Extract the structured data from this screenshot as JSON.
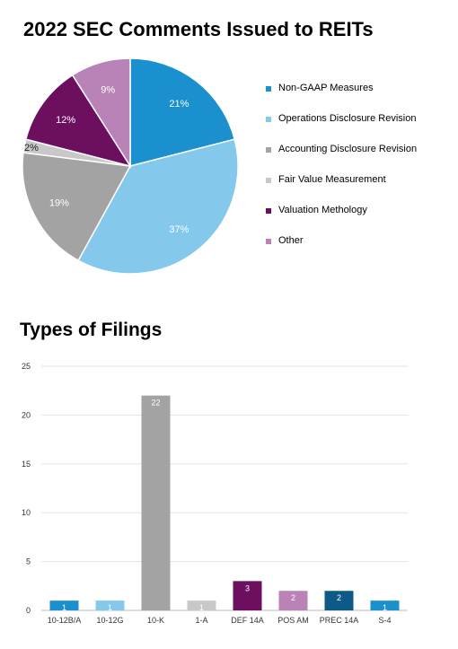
{
  "chart_data": [
    {
      "type": "pie",
      "title": "2022 SEC Comments Issued to REITs",
      "slices": [
        {
          "label": "Non-GAAP Measures",
          "value": 21,
          "display": "21%",
          "color": "#1A90CE"
        },
        {
          "label": "Operations Disclosure Revision",
          "value": 37,
          "display": "37%",
          "color": "#84C8EC"
        },
        {
          "label": "Accounting Disclosure Revision",
          "value": 19,
          "display": "19%",
          "color": "#A3A3A3"
        },
        {
          "label": "Fair Value Measurement",
          "value": 2,
          "display": "2%",
          "color": "#C8C8C8"
        },
        {
          "label": "Valuation Methology",
          "value": 12,
          "display": "12%",
          "color": "#6B0F5E"
        },
        {
          "label": "Other",
          "value": 9,
          "display": "9%",
          "color": "#B983B8"
        }
      ],
      "legend_position": "right"
    },
    {
      "type": "bar",
      "title": "Types of Filings",
      "categories": [
        "10-12B/A",
        "10-12G",
        "10-K",
        "1-A",
        "DEF 14A",
        "POS AM",
        "PREC 14A",
        "S-4"
      ],
      "values": [
        1,
        1,
        22,
        1,
        3,
        2,
        2,
        1
      ],
      "colors": [
        "#1A90CE",
        "#84C8EC",
        "#A3A3A3",
        "#C8C8C8",
        "#6B0F5E",
        "#B983B8",
        "#0E5A86",
        "#1A90CE"
      ],
      "ylim": [
        0,
        25
      ],
      "yticks": [
        0,
        5,
        10,
        15,
        20,
        25
      ],
      "grid": true,
      "xlabel": "",
      "ylabel": ""
    }
  ]
}
